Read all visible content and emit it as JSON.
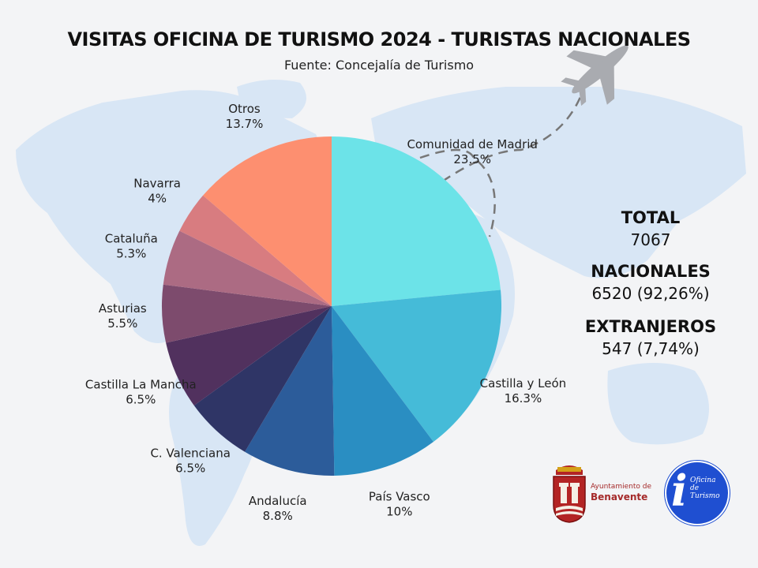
{
  "chart_data": {
    "type": "pie",
    "title": "VISITAS OFICINA DE TURISMO 2024 - TURISTAS NACIONALES",
    "subtitle": "Fuente: Concejalía de Turismo",
    "slices": [
      {
        "name": "Comunidad de Madrid",
        "value": 23.5,
        "label": "23.5%",
        "color": "#6ce3e8"
      },
      {
        "name": "Castilla y León",
        "value": 16.3,
        "label": "16.3%",
        "color": "#45bbd8"
      },
      {
        "name": "País Vasco",
        "value": 10,
        "label": "10%",
        "color": "#2a8ec2"
      },
      {
        "name": "Andalucía",
        "value": 8.8,
        "label": "8.8%",
        "color": "#2c5c9a"
      },
      {
        "name": "C. Valenciana",
        "value": 6.5,
        "label": "6.5%",
        "color": "#2f3566"
      },
      {
        "name": "Castilla La Mancha",
        "value": 6.5,
        "label": "6.5%",
        "color": "#51315e"
      },
      {
        "name": "Asturias",
        "value": 5.5,
        "label": "5.5%",
        "color": "#7d4b6d"
      },
      {
        "name": "Cataluña",
        "value": 5.3,
        "label": "5.3%",
        "color": "#ac6b83"
      },
      {
        "name": "Navarra",
        "value": 4,
        "label": "4%",
        "color": "#d87c80"
      },
      {
        "name": "Otros",
        "value": 13.7,
        "label": "13.7%",
        "color": "#fd8f70"
      }
    ]
  },
  "stats": {
    "total_label": "TOTAL",
    "total_value": "7067",
    "nacionales_label": "NACIONALES",
    "nacionales_value": "6520 (92,26%)",
    "extranjeros_label": "EXTRANJEROS",
    "extranjeros_value": "547 (7,74%)"
  },
  "logos": {
    "ayuntamiento_line1": "Ayuntamiento de",
    "ayuntamiento_line2": "Benavente",
    "oficina_text": "Oficina de Turismo"
  },
  "icons": {
    "airplane": "airplane-icon",
    "coat_of_arms": "coat-of-arms-icon",
    "info": "info-icon"
  }
}
